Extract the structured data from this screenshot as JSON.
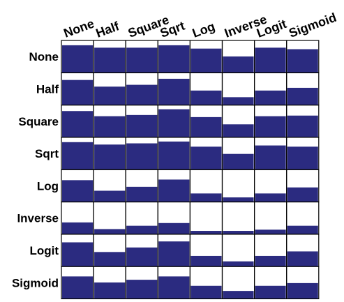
{
  "chart_data": {
    "type": "heatmap",
    "title": "",
    "xlabel": "",
    "ylabel": "",
    "column_labels": [
      "None",
      "Half",
      "Square",
      "Sqrt",
      "Log",
      "Inverse",
      "Logit",
      "Sigmoid"
    ],
    "row_labels": [
      "None",
      "Half",
      "Square",
      "Sqrt",
      "Log",
      "Inverse",
      "Logit",
      "Sigmoid"
    ],
    "cell_ylim": [
      0,
      1
    ],
    "bar_color": "#2b2b80",
    "cell_border_color": "#000000",
    "values": [
      [
        0.91,
        0.83,
        0.83,
        0.91,
        0.8,
        0.54,
        0.83,
        0.78
      ],
      [
        0.83,
        0.61,
        0.67,
        0.87,
        0.48,
        0.26,
        0.48,
        0.57
      ],
      [
        0.87,
        0.7,
        0.74,
        0.93,
        0.67,
        0.43,
        0.7,
        0.72
      ],
      [
        0.91,
        0.83,
        0.87,
        0.93,
        0.76,
        0.52,
        0.8,
        0.76
      ],
      [
        0.72,
        0.37,
        0.5,
        0.74,
        0.28,
        0.15,
        0.28,
        0.48
      ],
      [
        0.39,
        0.17,
        0.28,
        0.37,
        0.11,
        0.11,
        0.15,
        0.28
      ],
      [
        0.8,
        0.48,
        0.63,
        0.83,
        0.35,
        0.17,
        0.35,
        0.5
      ],
      [
        0.74,
        0.54,
        0.63,
        0.74,
        0.43,
        0.26,
        0.43,
        0.52
      ]
    ]
  }
}
